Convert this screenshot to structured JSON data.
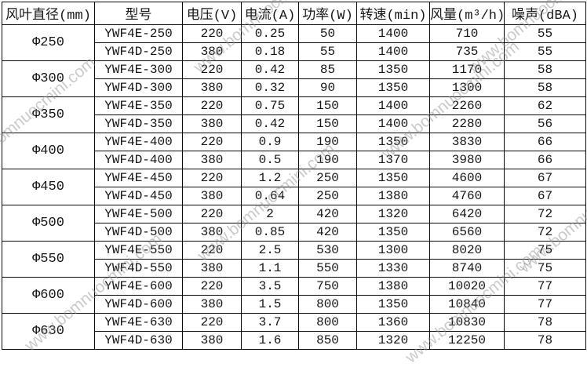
{
  "watermark": {
    "text": "www.bomnuocmini.com",
    "color_hint": "#919191"
  },
  "table": {
    "columns": [
      {
        "key": "diameter",
        "label": "风叶直径(mm)"
      },
      {
        "key": "model",
        "label": "型号"
      },
      {
        "key": "voltage",
        "label": "电压(V)"
      },
      {
        "key": "current",
        "label": "电流(A)"
      },
      {
        "key": "power",
        "label": "功率(W)"
      },
      {
        "key": "speed",
        "label": "转速(min)"
      },
      {
        "key": "airflow",
        "label": "风量(m³/h)"
      },
      {
        "key": "noise",
        "label": "噪声(dBA)"
      }
    ],
    "groups": [
      {
        "diameter": "Φ250",
        "rows": [
          {
            "model": "YWF4E-250",
            "voltage": "220",
            "current": "0.25",
            "power": "50",
            "speed": "1400",
            "airflow": "710",
            "noise": "55"
          },
          {
            "model": "YWF4D-250",
            "voltage": "380",
            "current": "0.18",
            "power": "55",
            "speed": "1400",
            "airflow": "735",
            "noise": "55"
          }
        ]
      },
      {
        "diameter": "Φ300",
        "rows": [
          {
            "model": "YWF4E-300",
            "voltage": "220",
            "current": "0.42",
            "power": "85",
            "speed": "1350",
            "airflow": "1170",
            "noise": "58"
          },
          {
            "model": "YWF4D-300",
            "voltage": "380",
            "current": "0.32",
            "power": "90",
            "speed": "1350",
            "airflow": "1300",
            "noise": "58"
          }
        ]
      },
      {
        "diameter": "Φ350",
        "rows": [
          {
            "model": "YWF4E-350",
            "voltage": "220",
            "current": "0.75",
            "power": "150",
            "speed": "1400",
            "airflow": "2260",
            "noise": "62"
          },
          {
            "model": "YWF4D-350",
            "voltage": "380",
            "current": "0.42",
            "power": "150",
            "speed": "1400",
            "airflow": "2280",
            "noise": "56"
          }
        ]
      },
      {
        "diameter": "Φ400",
        "rows": [
          {
            "model": "YWF4E-400",
            "voltage": "220",
            "current": "0.9",
            "power": "190",
            "speed": "1350",
            "airflow": "3830",
            "noise": "66"
          },
          {
            "model": "YWF4D-400",
            "voltage": "380",
            "current": "0.5",
            "power": "190",
            "speed": "1370",
            "airflow": "3980",
            "noise": "66"
          }
        ]
      },
      {
        "diameter": "Φ450",
        "rows": [
          {
            "model": "YWF4E-450",
            "voltage": "220",
            "current": "1.2",
            "power": "250",
            "speed": "1350",
            "airflow": "4600",
            "noise": "67"
          },
          {
            "model": "YWF4D-450",
            "voltage": "380",
            "current": "0.64",
            "power": "250",
            "speed": "1380",
            "airflow": "4760",
            "noise": "67"
          }
        ]
      },
      {
        "diameter": "Φ500",
        "rows": [
          {
            "model": "YWF4E-500",
            "voltage": "220",
            "current": "2",
            "power": "420",
            "speed": "1320",
            "airflow": "6420",
            "noise": "72"
          },
          {
            "model": "YWF4D-500",
            "voltage": "380",
            "current": "0.85",
            "power": "420",
            "speed": "1350",
            "airflow": "6560",
            "noise": "72"
          }
        ]
      },
      {
        "diameter": "Φ550",
        "rows": [
          {
            "model": "YWF4E-550",
            "voltage": "220",
            "current": "2.5",
            "power": "530",
            "speed": "1300",
            "airflow": "8020",
            "noise": "75"
          },
          {
            "model": "YWF4D-550",
            "voltage": "380",
            "current": "1.1",
            "power": "550",
            "speed": "1330",
            "airflow": "8740",
            "noise": "75"
          }
        ]
      },
      {
        "diameter": "Φ600",
        "rows": [
          {
            "model": "YWF4E-600",
            "voltage": "220",
            "current": "3.5",
            "power": "750",
            "speed": "1380",
            "airflow": "10020",
            "noise": "77"
          },
          {
            "model": "YWF4D-600",
            "voltage": "380",
            "current": "1.5",
            "power": "800",
            "speed": "1350",
            "airflow": "10840",
            "noise": "77"
          }
        ]
      },
      {
        "diameter": "Φ630",
        "rows": [
          {
            "model": "YWF4E-630",
            "voltage": "220",
            "current": "3.7",
            "power": "800",
            "speed": "1360",
            "airflow": "10830",
            "noise": "78"
          },
          {
            "model": "YWF4D-630",
            "voltage": "380",
            "current": "1.6",
            "power": "850",
            "speed": "1320",
            "airflow": "12250",
            "noise": "78"
          }
        ]
      }
    ]
  }
}
